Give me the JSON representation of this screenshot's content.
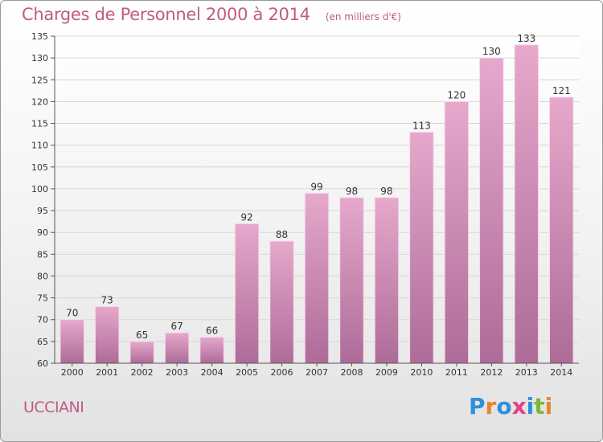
{
  "header": {
    "title": "Charges de Personnel 2000 à 2014",
    "subtitle": "(en milliers d'€)"
  },
  "footer": {
    "commune": "UCCIANI",
    "logo": {
      "text": "Proxiti",
      "letter_colors": [
        "#2f8fd8",
        "#e8842a",
        "#2f8fd8",
        "#e83f8a",
        "#2f8fd8",
        "#7ab83a",
        "#e8842a"
      ]
    }
  },
  "colors": {
    "text_accent": "#c05a86",
    "bar_top": "#e6a8cc",
    "bar_bottom": "#ad6c98"
  },
  "chart_data": {
    "type": "bar",
    "title": "Charges de Personnel 2000 à 2014",
    "subtitle": "(en milliers d'€)",
    "categories": [
      "2000",
      "2001",
      "2002",
      "2003",
      "2004",
      "2005",
      "2006",
      "2007",
      "2008",
      "2009",
      "2010",
      "2011",
      "2012",
      "2013",
      "2014"
    ],
    "values": [
      70,
      73,
      65,
      67,
      66,
      92,
      88,
      99,
      98,
      98,
      113,
      120,
      130,
      133,
      121
    ],
    "ylim": [
      60,
      135
    ],
    "yticks": [
      60,
      65,
      70,
      75,
      80,
      85,
      90,
      95,
      100,
      105,
      110,
      115,
      120,
      125,
      130,
      135
    ],
    "grid": true,
    "data_labels": true
  }
}
